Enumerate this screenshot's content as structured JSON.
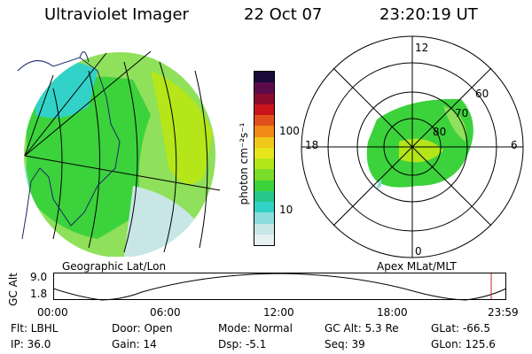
{
  "header": {
    "instrument": "Ultraviolet Imager",
    "date": "22 Oct 07",
    "time": "23:20:19 UT"
  },
  "colorbar": {
    "label": "photon cm⁻²s⁻¹",
    "ticks": [
      "100",
      "10"
    ],
    "colors": [
      "#1a0a3a",
      "#5a0c4a",
      "#8a0c2a",
      "#c8141a",
      "#e0501a",
      "#f08a14",
      "#f0c81a",
      "#e6e61a",
      "#b4e61a",
      "#78dc28",
      "#3cd23c",
      "#28c88c",
      "#32d2c8",
      "#8cdcdc",
      "#c8e6e6",
      "#e6f0f0"
    ]
  },
  "left_panel": {
    "caption": "Geographic Lat/Lon"
  },
  "right_panel": {
    "caption": "Apex MLat/MLT",
    "mlt_labels": {
      "top": "12",
      "left": "18",
      "right": "6",
      "bottom": "0"
    },
    "lat_labels": [
      "60",
      "70",
      "80"
    ]
  },
  "altitude_plot": {
    "ylabel": "GC Alt",
    "yticks": [
      "9.0",
      "1.8"
    ],
    "xticks": [
      "00:00",
      "06:00",
      "12:00",
      "18:00",
      "23:59"
    ],
    "marker_color": "#cc2222"
  },
  "status": {
    "flt": "Flt: LBHL",
    "ip": "IP: 36.0",
    "door": "Door: Open",
    "gain": "Gain: 14",
    "mode": "Mode: Normal",
    "dsp": "Dsp:    -5.1",
    "gcalt": "GC Alt: 5.3 Re",
    "seq": "Seq: 39",
    "glat": "GLat: -66.5",
    "glon": "GLon: 125.6"
  }
}
